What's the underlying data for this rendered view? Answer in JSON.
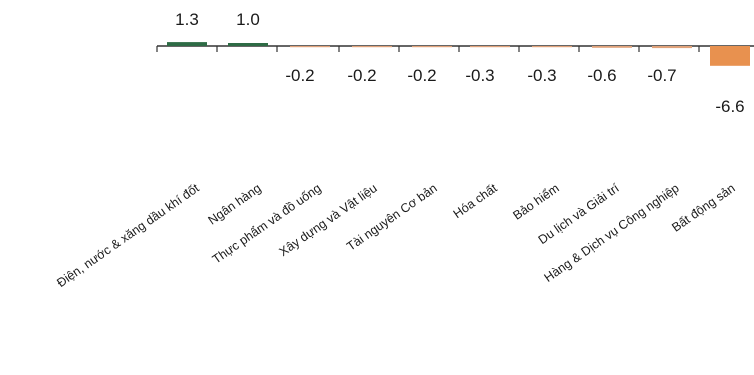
{
  "chart_data": {
    "type": "bar",
    "categories": [
      "Điện, nước & xăng dầu khí đốt",
      "Ngân hàng",
      "Thực phẩm và đồ uống",
      "Xây dựng và Vật liệu",
      "Tài nguyên Cơ bản",
      "Hóa chất",
      "Bảo hiểm",
      "Du lịch và Giải trí",
      "Hàng & Dịch vụ Công nghiệp",
      "Bất động sản"
    ],
    "values": [
      1.3,
      1.0,
      -0.2,
      -0.2,
      -0.2,
      -0.3,
      -0.3,
      -0.6,
      -0.7,
      -6.6
    ],
    "value_labels": [
      "1.3",
      "1.0",
      "-0.2",
      "-0.2",
      "-0.2",
      "-0.3",
      "-0.3",
      "-0.6",
      "-0.7",
      "-6.6"
    ],
    "title": "",
    "xlabel": "",
    "ylabel": "",
    "colors": {
      "positive": "#2e6b45",
      "negative_small": "#e0a27a",
      "negative_large": "#e8914f",
      "axis": "#333333"
    },
    "grid": false,
    "legend": "none"
  }
}
